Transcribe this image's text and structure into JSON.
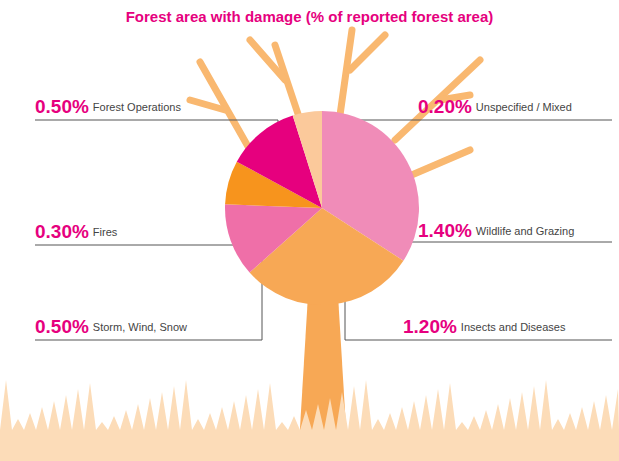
{
  "chart_data": {
    "type": "pie",
    "title": "Forest area with damage (% of reported forest area)",
    "categories": [
      "Wildlife and Grazing",
      "Insects and Diseases",
      "Storm, Wind, Snow",
      "Fires",
      "Forest Operations",
      "Unspecified / Mixed"
    ],
    "values": [
      1.4,
      1.2,
      0.5,
      0.3,
      0.5,
      0.2
    ],
    "value_labels": [
      "1.40%",
      "1.20%",
      "0.50%",
      "0.30%",
      "0.50%",
      "0.20%"
    ],
    "colors": [
      "#f08cb8",
      "#f7a855",
      "#ef6fa8",
      "#f7941d",
      "#e6007e",
      "#fbc99b"
    ],
    "data_labels": true
  }
}
